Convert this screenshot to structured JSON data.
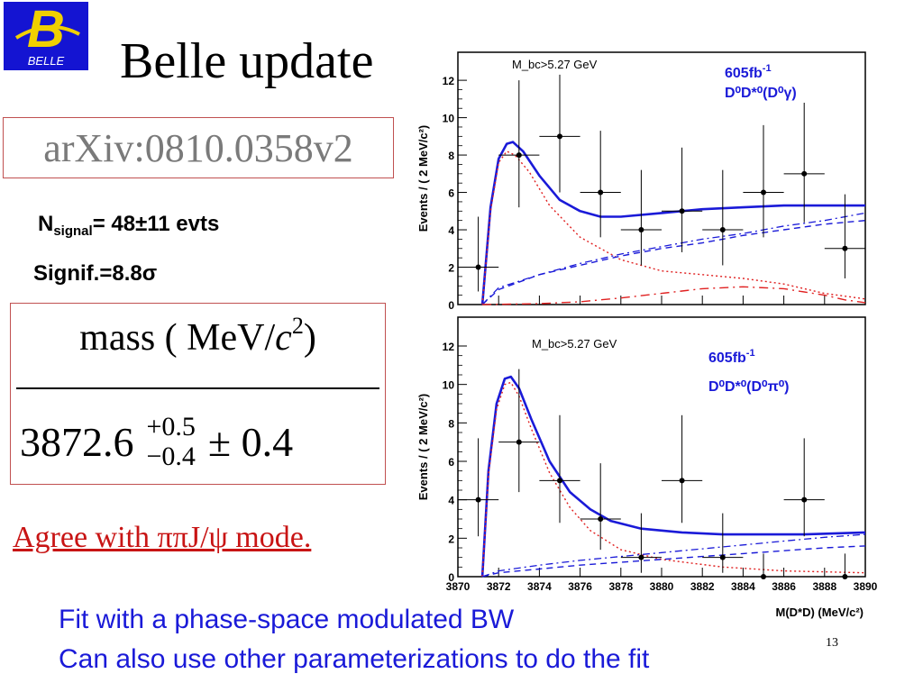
{
  "logo": {
    "letter": "B",
    "text": "BELLE"
  },
  "title": "Belle update",
  "arxiv": "arXiv:0810.0358v2",
  "n_signal": {
    "symbol": "N",
    "subscript": "signal",
    "value": "= 48±11 evts"
  },
  "significance": "Signif.=8.8σ",
  "mass_table": {
    "header_label": "mass ( MeV/",
    "header_var": "c",
    "header_exp": "2",
    "header_close": ")",
    "central": "3872.6",
    "err_up": "+0.5",
    "err_down": "−0.4",
    "err_sym": "± 0.4"
  },
  "agree_text": "Agree with ππJ/ψ mode.",
  "fit_line1": "Fit with a phase-space modulated BW",
  "fit_line2": "Can also use other parameterizations to do the fit",
  "page_number": "13",
  "colors": {
    "fit_curve": "#1a1ad8",
    "signal_curve": "#e02020",
    "accent_red": "#c81414",
    "logo_bg": "#1414d2",
    "logo_letter": "#f0d000"
  },
  "chart_data": [
    {
      "type": "scatter",
      "name": "top",
      "annotation": "M_bc>5.27 GeV",
      "lumi": "605fb",
      "lumi_exp": "-1",
      "channel": "D⁰D*⁰(D⁰γ)",
      "ylabel": "Events / ( 2 MeV/c²)",
      "xlim": [
        3870,
        3890
      ],
      "ylim": [
        0,
        13.5
      ],
      "yticks": [
        0,
        2,
        4,
        6,
        8,
        10,
        12
      ],
      "points": [
        {
          "x": 3871,
          "y": 2,
          "yerr_low": 1.3,
          "yerr_high": 2.7,
          "xerr": 1
        },
        {
          "x": 3873,
          "y": 8,
          "yerr_low": 2.8,
          "yerr_high": 4.0,
          "xerr": 1
        },
        {
          "x": 3875,
          "y": 9,
          "yerr_low": 3.0,
          "yerr_high": 3.3,
          "xerr": 1
        },
        {
          "x": 3877,
          "y": 6,
          "yerr_low": 2.4,
          "yerr_high": 3.3,
          "xerr": 1
        },
        {
          "x": 3879,
          "y": 4,
          "yerr_low": 1.9,
          "yerr_high": 3.2,
          "xerr": 1
        },
        {
          "x": 3881,
          "y": 5,
          "yerr_low": 2.2,
          "yerr_high": 3.4,
          "xerr": 1
        },
        {
          "x": 3883,
          "y": 4,
          "yerr_low": 1.9,
          "yerr_high": 3.2,
          "xerr": 1
        },
        {
          "x": 3885,
          "y": 6,
          "yerr_low": 2.4,
          "yerr_high": 3.6,
          "xerr": 1
        },
        {
          "x": 3887,
          "y": 7,
          "yerr_low": 2.6,
          "yerr_high": 3.8,
          "xerr": 1
        },
        {
          "x": 3889,
          "y": 3,
          "yerr_low": 1.6,
          "yerr_high": 2.9,
          "xerr": 1
        }
      ],
      "curves": {
        "total": {
          "x": [
            3871.2,
            3871.6,
            3872.0,
            3872.4,
            3872.7,
            3873.2,
            3874.0,
            3875.0,
            3876.0,
            3877.0,
            3878.0,
            3880.0,
            3882.0,
            3884.0,
            3886.0,
            3888.0,
            3890.0
          ],
          "y": [
            0,
            5.2,
            7.8,
            8.6,
            8.7,
            8.2,
            6.9,
            5.6,
            5.0,
            4.7,
            4.7,
            4.9,
            5.1,
            5.2,
            5.3,
            5.3,
            5.3
          ]
        },
        "signal": {
          "x": [
            3871.2,
            3871.6,
            3872.0,
            3872.4,
            3872.8,
            3873.5,
            3874.5,
            3876.0,
            3878.0,
            3880.0,
            3882.0,
            3884.0,
            3886.0,
            3888.0,
            3890.0
          ],
          "y": [
            0,
            5.0,
            7.6,
            8.2,
            8.0,
            7.1,
            5.3,
            3.6,
            2.4,
            1.8,
            1.6,
            1.4,
            1.1,
            0.6,
            0.3
          ]
        },
        "bkg_dashed": {
          "x": [
            3871.2,
            3872,
            3874,
            3876,
            3878,
            3880,
            3882,
            3884,
            3886,
            3888,
            3890
          ],
          "y": [
            0,
            0.8,
            1.6,
            2.1,
            2.6,
            3.0,
            3.3,
            3.7,
            4.0,
            4.3,
            4.5
          ]
        },
        "bkg_dashdot": {
          "x": [
            3871.2,
            3872,
            3874,
            3876,
            3878,
            3880,
            3882,
            3884,
            3886,
            3888,
            3890
          ],
          "y": [
            0,
            0.9,
            1.6,
            2.2,
            2.7,
            3.1,
            3.5,
            3.8,
            4.2,
            4.5,
            4.9
          ]
        },
        "red_dashdot": {
          "x": [
            3871.2,
            3874,
            3876,
            3878,
            3880,
            3882,
            3884,
            3886,
            3888,
            3889,
            3890
          ],
          "y": [
            0,
            0.05,
            0.15,
            0.35,
            0.6,
            0.85,
            0.95,
            0.85,
            0.5,
            0.25,
            0.1
          ]
        }
      }
    },
    {
      "type": "scatter",
      "name": "bottom",
      "annotation": "M_bc>5.27 GeV",
      "lumi": "605fb",
      "lumi_exp": "-1",
      "channel": "D⁰D*⁰(D⁰π⁰)",
      "ylabel": "Events / ( 2 MeV/c²)",
      "xlabel": "M(D*D) (MeV/c²)",
      "xlim": [
        3870,
        3890
      ],
      "ylim": [
        0,
        13.5
      ],
      "yticks": [
        0,
        2,
        4,
        6,
        8,
        10,
        12
      ],
      "xticks": [
        3870,
        3872,
        3874,
        3876,
        3878,
        3880,
        3882,
        3884,
        3886,
        3888,
        3890
      ],
      "points": [
        {
          "x": 3871,
          "y": 4,
          "yerr_low": 1.9,
          "yerr_high": 3.2,
          "xerr": 1
        },
        {
          "x": 3873,
          "y": 7,
          "yerr_low": 2.6,
          "yerr_high": 3.8,
          "xerr": 1
        },
        {
          "x": 3875,
          "y": 5,
          "yerr_low": 2.2,
          "yerr_high": 3.4,
          "xerr": 1
        },
        {
          "x": 3877,
          "y": 3,
          "yerr_low": 1.6,
          "yerr_high": 2.9,
          "xerr": 1
        },
        {
          "x": 3879,
          "y": 1,
          "yerr_low": 0.8,
          "yerr_high": 2.3,
          "xerr": 1
        },
        {
          "x": 3881,
          "y": 5,
          "yerr_low": 2.2,
          "yerr_high": 3.4,
          "xerr": 1
        },
        {
          "x": 3883,
          "y": 1,
          "yerr_low": 0.8,
          "yerr_high": 2.3,
          "xerr": 1
        },
        {
          "x": 3885,
          "y": 0,
          "yerr_low": 0,
          "yerr_high": 1.2,
          "xerr": 1
        },
        {
          "x": 3887,
          "y": 4,
          "yerr_low": 1.9,
          "yerr_high": 3.2,
          "xerr": 1
        },
        {
          "x": 3889,
          "y": 0,
          "yerr_low": 0,
          "yerr_high": 1.2,
          "xerr": 1
        }
      ],
      "curves": {
        "total": {
          "x": [
            3871.2,
            3871.5,
            3871.9,
            3872.3,
            3872.6,
            3873.0,
            3873.6,
            3874.5,
            3875.5,
            3876.5,
            3877.5,
            3879.0,
            3881.0,
            3883.0,
            3885.0,
            3887.0,
            3890.0
          ],
          "y": [
            0,
            5.5,
            9.0,
            10.3,
            10.4,
            9.8,
            8.2,
            6.0,
            4.4,
            3.5,
            2.9,
            2.5,
            2.3,
            2.2,
            2.2,
            2.2,
            2.3
          ]
        },
        "signal": {
          "x": [
            3871.2,
            3871.5,
            3871.9,
            3872.3,
            3872.6,
            3873.0,
            3873.6,
            3874.5,
            3875.5,
            3876.5,
            3878.0,
            3880.0,
            3883.0,
            3886.0,
            3890.0
          ],
          "y": [
            0,
            5.3,
            8.7,
            10.0,
            10.1,
            9.4,
            7.7,
            5.4,
            3.6,
            2.4,
            1.4,
            0.9,
            0.5,
            0.3,
            0.2
          ]
        },
        "bkg_dashed": {
          "x": [
            3871.2,
            3872,
            3874,
            3876,
            3878,
            3880,
            3882,
            3884,
            3886,
            3888,
            3890
          ],
          "y": [
            0,
            0.2,
            0.4,
            0.6,
            0.75,
            0.9,
            1.05,
            1.2,
            1.35,
            1.5,
            1.6
          ]
        },
        "bkg_dashdot": {
          "x": [
            3871.2,
            3872,
            3874,
            3876,
            3878,
            3880,
            3882,
            3884,
            3886,
            3888,
            3890
          ],
          "y": [
            0,
            0.3,
            0.6,
            0.85,
            1.05,
            1.25,
            1.45,
            1.65,
            1.85,
            2.05,
            2.2
          ]
        }
      }
    }
  ]
}
